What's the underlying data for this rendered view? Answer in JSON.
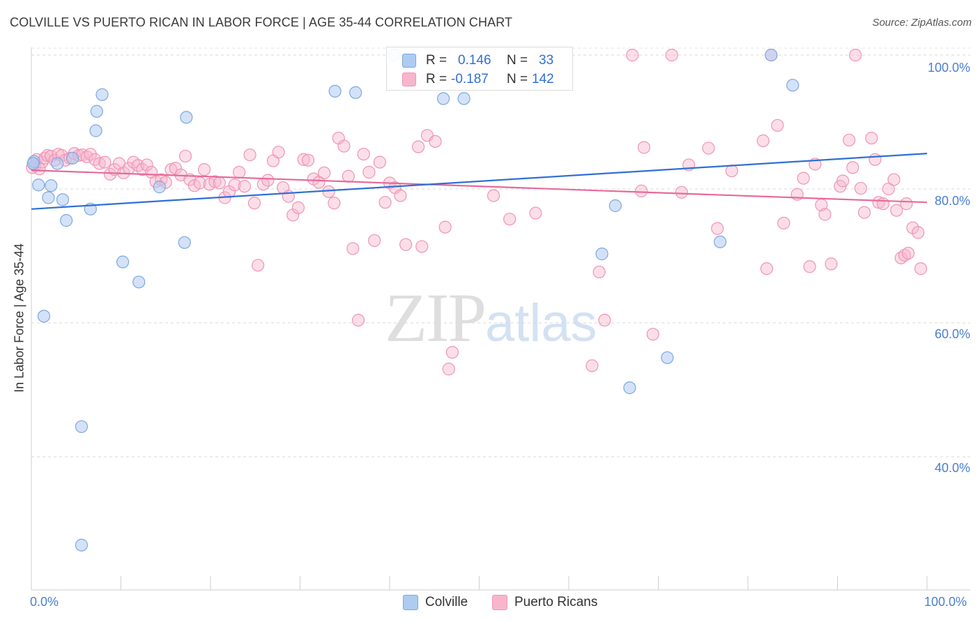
{
  "title": "COLVILLE VS PUERTO RICAN IN LABOR FORCE | AGE 35-44 CORRELATION CHART",
  "source": "Source: ZipAtlas.com",
  "watermark": {
    "zip": "ZIP",
    "atlas": "atlas"
  },
  "legend": {
    "colville": {
      "r_label": "R =",
      "r_value": "0.146",
      "n_label": "N =",
      "n_value": "33"
    },
    "puerto": {
      "r_label": "R =",
      "r_value": "-0.187",
      "n_label": "N =",
      "n_value": "142"
    }
  },
  "bottom_legend": {
    "colville": "Colville",
    "puerto": "Puerto Ricans"
  },
  "colors": {
    "colville_fill": "#aecbf2",
    "colville_stroke": "#7ea7e0",
    "colville_line": "#2f6fd6",
    "puerto_fill": "#f7b6cc",
    "puerto_stroke": "#ee95b4",
    "puerto_line": "#e8699a",
    "axis_label": "#4a7fd0",
    "grid": "#d9d9d9"
  },
  "chart_data": {
    "type": "scatter",
    "title": "COLVILLE VS PUERTO RICAN IN LABOR FORCE | AGE 35-44 CORRELATION CHART",
    "xlabel": "",
    "ylabel": "In Labor Force | Age 35-44",
    "xlim": [
      0,
      100
    ],
    "ylim": [
      20,
      102
    ],
    "x_tick_labels": [
      "0.0%",
      "100.0%"
    ],
    "y_ticks": [
      40,
      60,
      80,
      100
    ],
    "y_tick_labels": [
      "40.0%",
      "60.0%",
      "80.0%",
      "100.0%"
    ],
    "grid": true,
    "series": [
      {
        "name": "Colville",
        "r": 0.146,
        "n": 33,
        "trend": {
          "x": [
            0,
            100
          ],
          "y": [
            77.0,
            85.3
          ]
        },
        "points": [
          [
            0.3,
            84.1
          ],
          [
            0.8,
            80.6
          ],
          [
            1.4,
            61.0
          ],
          [
            1.9,
            78.7
          ],
          [
            2.2,
            80.5
          ],
          [
            2.9,
            83.8
          ],
          [
            3.5,
            78.4
          ],
          [
            3.9,
            75.3
          ],
          [
            4.6,
            84.6
          ],
          [
            5.6,
            44.5
          ],
          [
            5.6,
            26.8
          ],
          [
            6.6,
            77.0
          ],
          [
            7.2,
            88.7
          ],
          [
            7.3,
            91.6
          ],
          [
            7.9,
            94.1
          ],
          [
            10.2,
            69.1
          ],
          [
            12.0,
            66.1
          ],
          [
            14.3,
            80.3
          ],
          [
            17.1,
            72.0
          ],
          [
            17.3,
            90.7
          ],
          [
            33.9,
            94.6
          ],
          [
            36.2,
            94.4
          ],
          [
            40.5,
            100.0
          ],
          [
            46.0,
            93.5
          ],
          [
            48.3,
            93.5
          ],
          [
            63.7,
            70.3
          ],
          [
            65.2,
            77.5
          ],
          [
            66.8,
            50.3
          ],
          [
            71.0,
            54.8
          ],
          [
            76.9,
            72.1
          ],
          [
            82.6,
            100.0
          ],
          [
            85.0,
            95.5
          ],
          [
            0.2,
            83.8
          ]
        ]
      },
      {
        "name": "Puerto Ricans",
        "r": -0.187,
        "n": 142,
        "trend": {
          "x": [
            0,
            100
          ],
          "y": [
            82.8,
            78.0
          ]
        },
        "points": [
          [
            0.4,
            83.5
          ],
          [
            0.6,
            84.4
          ],
          [
            0.9,
            83.0
          ],
          [
            1.2,
            84.0
          ],
          [
            1.5,
            84.6
          ],
          [
            1.8,
            85.0
          ],
          [
            2.2,
            84.9
          ],
          [
            2.6,
            84.3
          ],
          [
            3.0,
            85.2
          ],
          [
            3.4,
            85.0
          ],
          [
            3.8,
            84.3
          ],
          [
            4.3,
            84.6
          ],
          [
            4.8,
            85.3
          ],
          [
            5.3,
            85.0
          ],
          [
            5.7,
            85.1
          ],
          [
            6.2,
            84.8
          ],
          [
            6.6,
            85.2
          ],
          [
            7.1,
            84.4
          ],
          [
            7.6,
            83.8
          ],
          [
            8.2,
            84.0
          ],
          [
            8.8,
            82.2
          ],
          [
            9.3,
            82.9
          ],
          [
            9.8,
            83.8
          ],
          [
            10.3,
            82.4
          ],
          [
            10.9,
            83.1
          ],
          [
            11.4,
            84.0
          ],
          [
            11.9,
            83.5
          ],
          [
            12.4,
            82.9
          ],
          [
            12.9,
            83.6
          ],
          [
            13.4,
            82.5
          ],
          [
            13.9,
            81.1
          ],
          [
            14.5,
            81.4
          ],
          [
            15.0,
            81.0
          ],
          [
            15.6,
            82.9
          ],
          [
            16.1,
            83.1
          ],
          [
            16.7,
            82.1
          ],
          [
            17.2,
            84.9
          ],
          [
            17.7,
            81.4
          ],
          [
            18.2,
            80.5
          ],
          [
            18.8,
            80.9
          ],
          [
            19.3,
            82.9
          ],
          [
            19.9,
            80.7
          ],
          [
            20.5,
            81.1
          ],
          [
            21.0,
            80.9
          ],
          [
            21.6,
            78.7
          ],
          [
            22.1,
            79.6
          ],
          [
            22.7,
            80.6
          ],
          [
            23.2,
            82.5
          ],
          [
            23.8,
            80.4
          ],
          [
            24.4,
            85.1
          ],
          [
            24.9,
            77.9
          ],
          [
            25.3,
            68.6
          ],
          [
            25.9,
            80.7
          ],
          [
            26.4,
            81.3
          ],
          [
            27.0,
            84.2
          ],
          [
            27.6,
            85.5
          ],
          [
            28.1,
            80.2
          ],
          [
            28.7,
            78.9
          ],
          [
            29.2,
            76.1
          ],
          [
            29.8,
            77.2
          ],
          [
            30.4,
            84.4
          ],
          [
            30.9,
            84.3
          ],
          [
            31.5,
            81.5
          ],
          [
            32.1,
            81.0
          ],
          [
            32.7,
            82.4
          ],
          [
            33.2,
            79.6
          ],
          [
            33.8,
            77.9
          ],
          [
            34.3,
            87.6
          ],
          [
            34.9,
            86.4
          ],
          [
            35.4,
            81.9
          ],
          [
            35.9,
            71.1
          ],
          [
            36.5,
            60.4
          ],
          [
            37.1,
            85.2
          ],
          [
            37.7,
            82.5
          ],
          [
            38.3,
            72.3
          ],
          [
            38.9,
            84.0
          ],
          [
            39.5,
            78.0
          ],
          [
            40.0,
            80.9
          ],
          [
            40.6,
            80.2
          ],
          [
            41.2,
            79.0
          ],
          [
            41.8,
            71.7
          ],
          [
            43.2,
            86.3
          ],
          [
            43.6,
            71.4
          ],
          [
            44.2,
            88.0
          ],
          [
            45.1,
            87.1
          ],
          [
            46.2,
            74.3
          ],
          [
            47.0,
            55.6
          ],
          [
            47.2,
            96.0
          ],
          [
            48.2,
            98.2
          ],
          [
            48.7,
            98.2
          ],
          [
            46.6,
            53.1
          ],
          [
            51.6,
            79.0
          ],
          [
            53.4,
            75.5
          ],
          [
            56.3,
            76.4
          ],
          [
            57.6,
            100.0
          ],
          [
            62.6,
            53.6
          ],
          [
            63.4,
            67.6
          ],
          [
            64.0,
            60.4
          ],
          [
            67.1,
            100.0
          ],
          [
            68.1,
            79.7
          ],
          [
            68.4,
            86.2
          ],
          [
            69.4,
            58.3
          ],
          [
            71.5,
            100.0
          ],
          [
            72.6,
            79.5
          ],
          [
            73.4,
            83.6
          ],
          [
            75.6,
            86.1
          ],
          [
            76.6,
            74.1
          ],
          [
            78.2,
            82.7
          ],
          [
            81.7,
            87.2
          ],
          [
            82.1,
            68.1
          ],
          [
            82.6,
            100.0
          ],
          [
            83.3,
            89.5
          ],
          [
            84.0,
            74.9
          ],
          [
            85.5,
            79.2
          ],
          [
            86.2,
            81.6
          ],
          [
            86.9,
            68.4
          ],
          [
            87.5,
            83.7
          ],
          [
            88.2,
            77.6
          ],
          [
            88.6,
            76.2
          ],
          [
            89.3,
            68.8
          ],
          [
            90.3,
            80.4
          ],
          [
            90.6,
            81.2
          ],
          [
            91.3,
            87.3
          ],
          [
            91.7,
            83.2
          ],
          [
            92.0,
            100.0
          ],
          [
            92.6,
            80.1
          ],
          [
            93.0,
            76.5
          ],
          [
            93.8,
            87.6
          ],
          [
            94.2,
            84.4
          ],
          [
            94.6,
            78.0
          ],
          [
            95.1,
            77.8
          ],
          [
            95.7,
            80.0
          ],
          [
            96.3,
            81.4
          ],
          [
            96.6,
            76.8
          ],
          [
            97.1,
            69.7
          ],
          [
            97.5,
            70.1
          ],
          [
            97.7,
            77.8
          ],
          [
            97.9,
            70.4
          ],
          [
            98.4,
            74.2
          ],
          [
            99.0,
            73.5
          ],
          [
            99.3,
            68.1
          ],
          [
            0.1,
            83.2
          ]
        ]
      }
    ]
  }
}
